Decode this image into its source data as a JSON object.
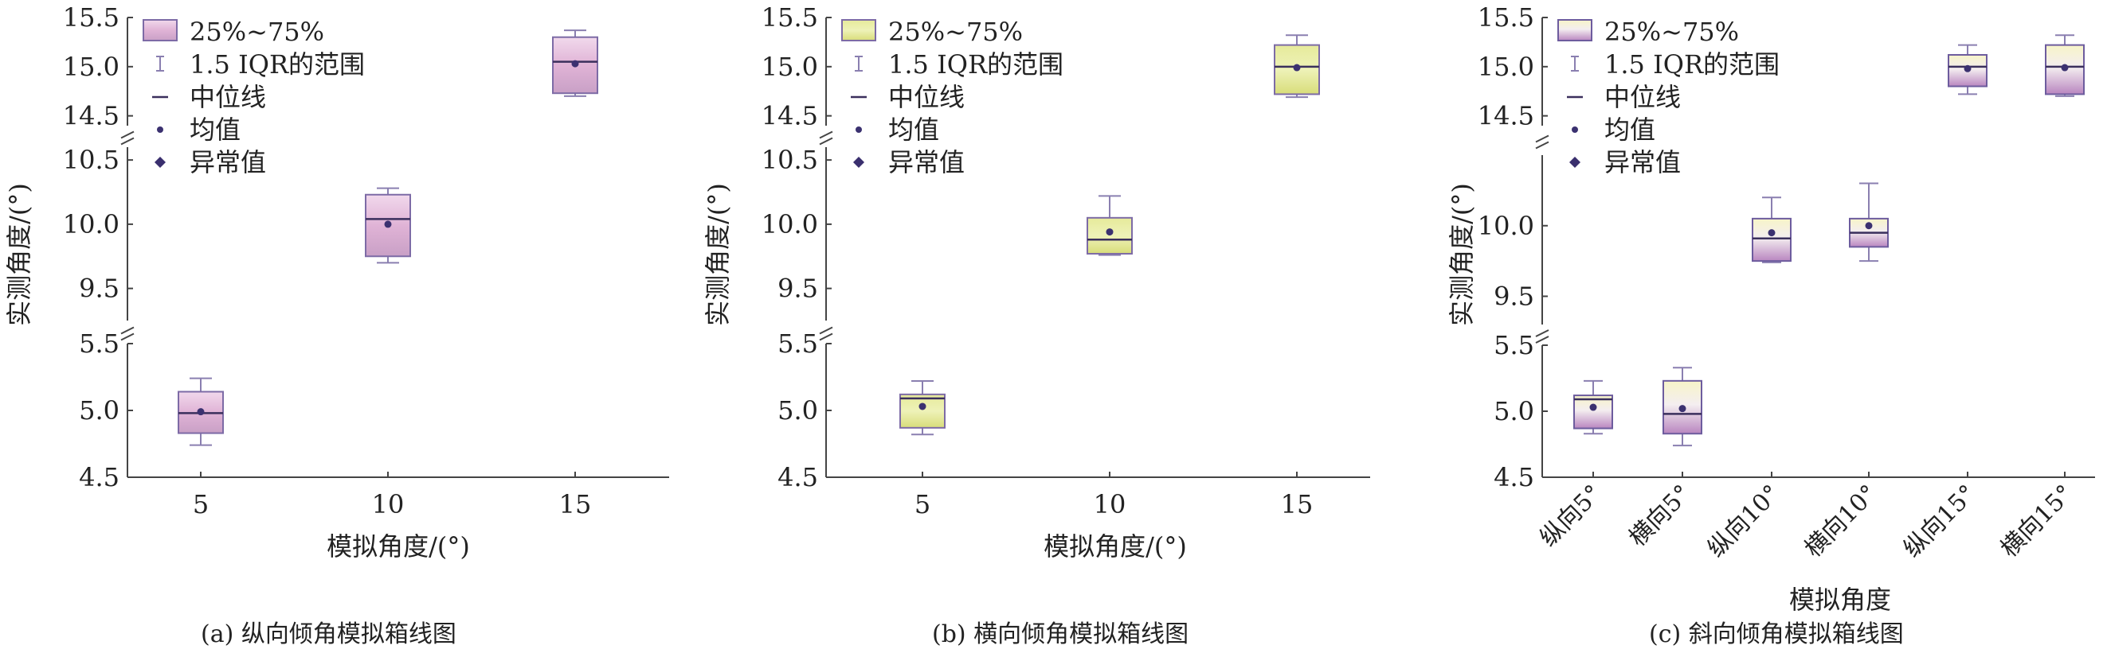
{
  "chart_data": [
    {
      "type": "box",
      "caption": "(a) 纵向倾角模拟箱线图",
      "xlabel": "模拟角度/(°)",
      "ylabel": "实测角度/(°)",
      "categories": [
        "5",
        "10",
        "15"
      ],
      "y_segments": [
        {
          "ylim": [
            4.5,
            5.5
          ],
          "ticks": [
            "4.5",
            "5.0",
            "5.5"
          ]
        },
        {
          "ylim": [
            9.25,
            10.6
          ],
          "ticks": [
            "9.5",
            "10.0",
            "10.5"
          ]
        },
        {
          "ylim": [
            14.4,
            15.5
          ],
          "ticks": [
            "14.5",
            "15.0",
            "15.5"
          ]
        }
      ],
      "colors": {
        "fill": "#e3b9da",
        "edge": "#7d6ba6",
        "median": "#3a2f5c",
        "mean": "#3b3170",
        "whisker": "#8a7fb0"
      },
      "legend": {
        "position": "top-left",
        "entries": [
          "25%~75%",
          "1.5 IQR的范围",
          "中位线",
          "均值",
          "异常值"
        ]
      },
      "boxes": [
        {
          "category": "5",
          "whisker_low": 4.74,
          "q1": 4.83,
          "median": 4.98,
          "q3": 5.14,
          "whisker_high": 5.24,
          "mean": 4.99
        },
        {
          "category": "10",
          "whisker_low": 9.7,
          "q1": 9.75,
          "median": 10.04,
          "q3": 10.23,
          "whisker_high": 10.28,
          "mean": 10.0
        },
        {
          "category": "15",
          "whisker_low": 14.7,
          "q1": 14.73,
          "median": 15.05,
          "q3": 15.3,
          "whisker_high": 15.37,
          "mean": 15.03
        }
      ]
    },
    {
      "type": "box",
      "caption": "(b) 横向倾角模拟箱线图",
      "xlabel": "模拟角度/(°)",
      "ylabel": "实测角度/(°)",
      "categories": [
        "5",
        "10",
        "15"
      ],
      "y_segments": [
        {
          "ylim": [
            4.5,
            5.5
          ],
          "ticks": [
            "4.5",
            "5.0",
            "5.5"
          ]
        },
        {
          "ylim": [
            9.25,
            10.6
          ],
          "ticks": [
            "9.5",
            "10.0",
            "10.5"
          ]
        },
        {
          "ylim": [
            14.4,
            15.5
          ],
          "ticks": [
            "14.5",
            "15.0",
            "15.5"
          ]
        }
      ],
      "colors": {
        "fill": "#e2e78e",
        "edge": "#7d6ba6",
        "median": "#3a2f5c",
        "mean": "#3b3170",
        "whisker": "#8a7fb0"
      },
      "legend": {
        "position": "top-left",
        "entries": [
          "25%~75%",
          "1.5 IQR的范围",
          "中位线",
          "均值",
          "异常值"
        ]
      },
      "boxes": [
        {
          "category": "5",
          "whisker_low": 4.82,
          "q1": 4.87,
          "median": 5.09,
          "q3": 5.12,
          "whisker_high": 5.22,
          "mean": 5.03
        },
        {
          "category": "10",
          "whisker_low": 9.76,
          "q1": 9.77,
          "median": 9.88,
          "q3": 10.05,
          "whisker_high": 10.22,
          "mean": 9.94
        },
        {
          "category": "15",
          "whisker_low": 14.69,
          "q1": 14.72,
          "median": 15.0,
          "q3": 15.22,
          "whisker_high": 15.32,
          "mean": 14.99
        }
      ]
    },
    {
      "type": "box",
      "caption": "(c) 斜向倾角模拟箱线图",
      "xlabel": "模拟角度",
      "ylabel": "实测角度/(°)",
      "categories": [
        "纵向5°",
        "横向5°",
        "纵向10°",
        "横向10°",
        "纵向15°",
        "横向15°"
      ],
      "y_segments": [
        {
          "ylim": [
            4.5,
            5.5
          ],
          "ticks": [
            "4.5",
            "5.0",
            "5.5"
          ]
        },
        {
          "ylim": [
            9.3,
            10.5
          ],
          "ticks": [
            "9.5",
            "10.0"
          ]
        },
        {
          "ylim": [
            14.4,
            15.5
          ],
          "ticks": [
            "14.5",
            "15.0",
            "15.5"
          ]
        }
      ],
      "colors": {
        "fill": "#e9cde6",
        "fill_alt": "#efefb8",
        "edge": "#6d5c9e",
        "median": "#3a2f5c",
        "mean": "#3b3170",
        "whisker": "#8a7fb0"
      },
      "legend": {
        "position": "top-left",
        "entries": [
          "25%~75%",
          "1.5 IQR的范围",
          "中位线",
          "均值",
          "异常值"
        ]
      },
      "boxes": [
        {
          "category": "纵向5°",
          "whisker_low": 4.83,
          "q1": 4.87,
          "median": 5.09,
          "q3": 5.12,
          "whisker_high": 5.23,
          "mean": 5.03
        },
        {
          "category": "横向5°",
          "whisker_low": 4.74,
          "q1": 4.83,
          "median": 4.98,
          "q3": 5.23,
          "whisker_high": 5.33,
          "mean": 5.02
        },
        {
          "category": "纵向10°",
          "whisker_low": 9.74,
          "q1": 9.75,
          "median": 9.91,
          "q3": 10.05,
          "whisker_high": 10.2,
          "mean": 9.95
        },
        {
          "category": "横向10°",
          "whisker_low": 9.75,
          "q1": 9.85,
          "median": 9.95,
          "q3": 10.05,
          "whisker_high": 10.3,
          "mean": 10.0
        },
        {
          "category": "纵向15°",
          "whisker_low": 14.72,
          "q1": 14.8,
          "median": 15.0,
          "q3": 15.12,
          "whisker_high": 15.22,
          "mean": 14.98
        },
        {
          "category": "横向15°",
          "whisker_low": 14.7,
          "q1": 14.72,
          "median": 15.0,
          "q3": 15.22,
          "whisker_high": 15.32,
          "mean": 14.99
        }
      ]
    }
  ]
}
